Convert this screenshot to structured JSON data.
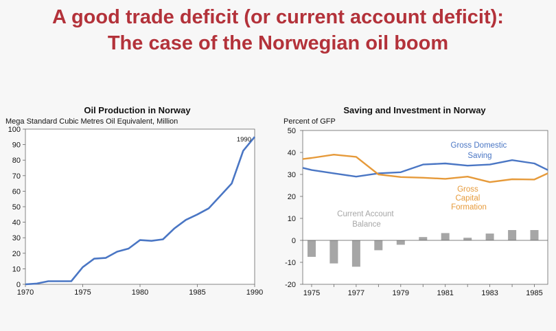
{
  "title": {
    "line1": "A good trade deficit (or current account deficit):",
    "line2": "The case of the Norwegian oil boom"
  },
  "colors": {
    "title": "#b3323a",
    "blue": "#4a76c4",
    "orange": "#e69a3a",
    "gray": "#a6a6a6"
  },
  "chart_data": [
    {
      "type": "line",
      "title": "Oil Production in Norway",
      "ylabel": "Mega Standard Cubic Metres Oil Equivalent, Million",
      "xlim": [
        1970,
        1990
      ],
      "ylim": [
        0,
        100
      ],
      "x_ticks": [
        1970,
        1975,
        1980,
        1985,
        1990
      ],
      "y_ticks": [
        0,
        10,
        20,
        30,
        40,
        50,
        60,
        70,
        80,
        90,
        100
      ],
      "annotation": "1990",
      "series": [
        {
          "x": [
            1970,
            1971,
            1972,
            1973,
            1974,
            1975,
            1976,
            1977,
            1978,
            1979,
            1980,
            1981,
            1982,
            1983,
            1984,
            1985,
            1986,
            1987,
            1988,
            1989,
            1990
          ],
          "values": [
            0,
            0.5,
            2,
            2,
            2,
            11,
            16.5,
            17,
            21,
            23,
            28.5,
            28,
            29,
            36,
            41.5,
            45,
            49,
            57,
            65,
            86,
            95
          ]
        }
      ]
    },
    {
      "type": "line+bar",
      "title": "Saving and Investment in Norway",
      "ylabel": "Percent of GFP",
      "xlim": [
        1974.6,
        1985.6
      ],
      "ylim": [
        -20,
        50
      ],
      "x_ticks": [
        1975,
        1977,
        1979,
        1981,
        1983,
        1985
      ],
      "y_ticks": [
        -20,
        -10,
        0,
        10,
        20,
        30,
        40,
        50
      ],
      "annotations": {
        "saving": [
          "Gross Domestic",
          "Saving"
        ],
        "investment": [
          "Gross",
          "Capital",
          "Formation"
        ],
        "balance": [
          "Current Account",
          "Balance"
        ]
      },
      "x": [
        1975,
        1976,
        1977,
        1978,
        1979,
        1980,
        1981,
        1982,
        1983,
        1984,
        1985
      ],
      "series": [
        {
          "key": "saving",
          "type": "line",
          "x": [
            1974.6,
            1975,
            1976,
            1977,
            1978,
            1979,
            1980,
            1981,
            1982,
            1983,
            1984,
            1985,
            1985.6
          ],
          "values": [
            33,
            32,
            30.5,
            29,
            30.5,
            31,
            34.5,
            35,
            34,
            34.5,
            36.5,
            35,
            32
          ]
        },
        {
          "key": "investment",
          "type": "line",
          "x": [
            1974.6,
            1975,
            1976,
            1977,
            1978,
            1979,
            1980,
            1981,
            1982,
            1983,
            1984,
            1985,
            1985.6
          ],
          "values": [
            37,
            37.5,
            39,
            38,
            30,
            28.8,
            28.5,
            28,
            29,
            26.5,
            27.8,
            27.7,
            30.5
          ]
        },
        {
          "key": "balance",
          "type": "bar",
          "values": [
            -7.5,
            -10.5,
            -12,
            -4.5,
            -2,
            1.5,
            3.3,
            1.2,
            3.1,
            4.7,
            4.7
          ]
        }
      ]
    }
  ]
}
